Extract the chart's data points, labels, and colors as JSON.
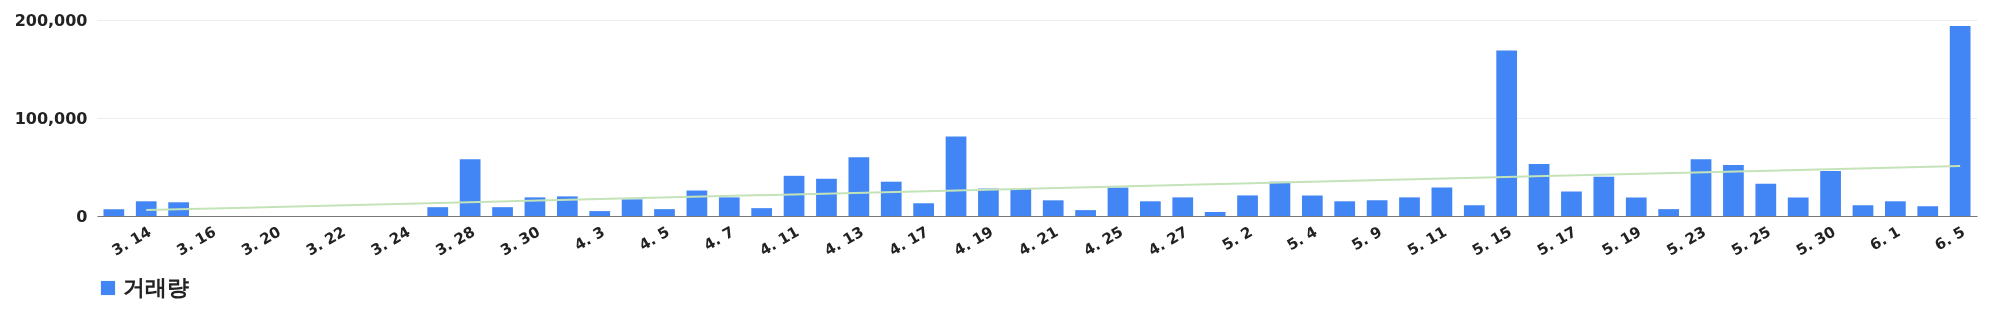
{
  "chart_data": {
    "type": "bar",
    "categories": [
      null,
      "3. 14",
      null,
      "3. 16",
      null,
      "3. 20",
      null,
      "3. 22",
      null,
      "3. 24",
      null,
      "3. 28",
      null,
      "3. 30",
      null,
      "4. 3",
      null,
      "4. 5",
      null,
      "4. 7",
      null,
      "4. 11",
      null,
      "4. 13",
      null,
      "4. 17",
      null,
      "4. 19",
      null,
      "4. 21",
      null,
      "4. 25",
      null,
      "4. 27",
      null,
      "5. 2",
      null,
      "5. 4",
      null,
      "5. 9",
      null,
      "5. 11",
      null,
      "5. 15",
      null,
      "5. 17",
      null,
      "5. 19",
      null,
      "5. 23",
      null,
      "5. 25",
      null,
      "5. 30",
      null,
      "6. 1",
      null,
      "6. 5"
    ],
    "series": [
      {
        "name": "거래량",
        "color": "#4285f4",
        "values": [
          7000,
          15000,
          14000,
          0,
          0,
          0,
          0,
          0,
          0,
          0,
          9000,
          58000,
          9000,
          19000,
          20000,
          5000,
          17000,
          7000,
          26000,
          19000,
          8000,
          41000,
          38000,
          60000,
          35000,
          13000,
          81000,
          28000,
          28000,
          16000,
          6000,
          29000,
          15000,
          19000,
          4000,
          21000,
          35000,
          21000,
          15000,
          16000,
          19000,
          29000,
          11000,
          169000,
          53000,
          25000,
          40000,
          19000,
          7000,
          58000,
          52000,
          33000,
          19000,
          46000,
          11000,
          15000,
          10000,
          194000
        ]
      },
      {
        "type": "line",
        "color": "#c5e3b8",
        "x": [
          "3. 14",
          "6. 5"
        ],
        "values": [
          6000,
          51000
        ]
      }
    ],
    "ylim": [
      0,
      200000
    ],
    "yticks": [
      0,
      {
        "value": 100000,
        "label": "100,000"
      },
      {
        "value": 200000,
        "label": "200,000"
      }
    ],
    "grid": "y",
    "legend": "bottom"
  }
}
